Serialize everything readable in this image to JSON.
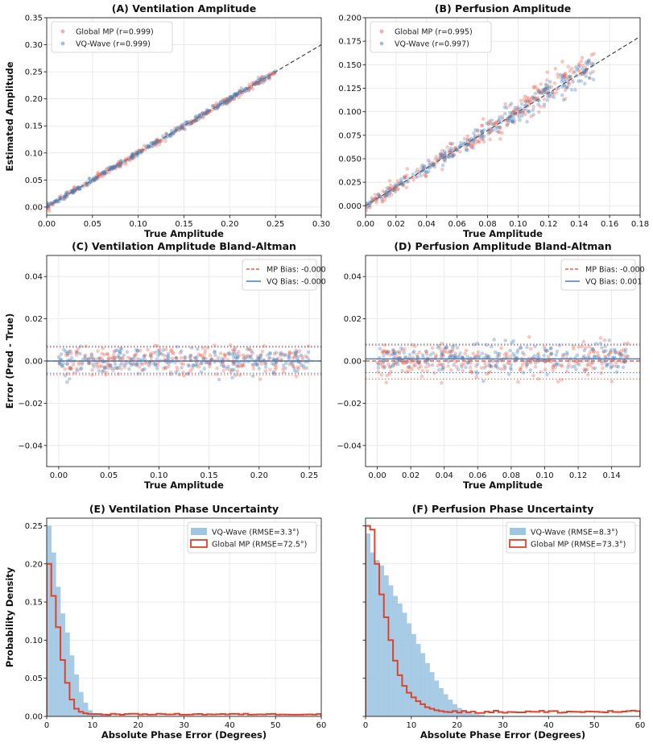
{
  "colors": {
    "mp": "#e8604c",
    "vq": "#4a7fb5",
    "vq_hist": "#9ec6e2",
    "mp_hist": "#e0412b",
    "grid": "#e6e6e6",
    "identity": "#444444"
  },
  "chart_data": [
    {
      "id": "A",
      "type": "scatter",
      "title": "(A) Ventilation Amplitude",
      "xlabel": "True Amplitude",
      "ylabel": "Estimated Amplitude",
      "xlim": [
        0,
        0.3
      ],
      "ylim": [
        -0.015,
        0.35
      ],
      "xticks": [
        0.0,
        0.05,
        0.1,
        0.15,
        0.2,
        0.25,
        0.3
      ],
      "yticks": [
        0.0,
        0.05,
        0.1,
        0.15,
        0.2,
        0.25,
        0.3,
        0.35
      ],
      "tick_decimals": 2,
      "identity_line": true,
      "grid": true,
      "legend_position": "top-left",
      "x_range": [
        0,
        0.25
      ],
      "series": [
        {
          "name": "Global MP (r=0.999)",
          "color_key": "mp",
          "noise_sd": 0.003
        },
        {
          "name": "VQ-Wave (r=0.999)",
          "color_key": "vq",
          "noise_sd": 0.0025
        }
      ]
    },
    {
      "id": "B",
      "type": "scatter",
      "title": "(B) Perfusion Amplitude",
      "xlabel": "True Amplitude",
      "ylabel": "",
      "xlim": [
        0,
        0.18
      ],
      "ylim": [
        -0.01,
        0.2
      ],
      "xticks": [
        0.0,
        0.02,
        0.04,
        0.06,
        0.08,
        0.1,
        0.12,
        0.14,
        0.16,
        0.18
      ],
      "yticks": [
        0.0,
        0.025,
        0.05,
        0.075,
        0.1,
        0.125,
        0.15,
        0.175,
        0.2
      ],
      "tick_decimals": 3,
      "xtick_decimals": 2,
      "identity_line": true,
      "grid": true,
      "legend_position": "top-left",
      "x_range": [
        0,
        0.15
      ],
      "series": [
        {
          "name": "Global MP (r=0.995)",
          "color_key": "mp",
          "noise_sd": 0.005
        },
        {
          "name": "VQ-Wave (r=0.997)",
          "color_key": "vq",
          "noise_sd": 0.004
        }
      ]
    },
    {
      "id": "C",
      "type": "scatter",
      "title": "(C) Ventilation Amplitude Bland-Altman",
      "xlabel": "True Amplitude",
      "ylabel": "Error (Pred - True)",
      "xlim": [
        -0.012,
        0.262
      ],
      "ylim": [
        -0.05,
        0.05
      ],
      "xticks": [
        0.0,
        0.05,
        0.1,
        0.15,
        0.2,
        0.25
      ],
      "yticks": [
        -0.04,
        -0.02,
        0.0,
        0.02,
        0.04
      ],
      "tick_decimals": 2,
      "grid": true,
      "legend_position": "top-right",
      "x_range": [
        0,
        0.25
      ],
      "bias": {
        "mp": -0.0,
        "vq": -0.0
      },
      "loa": {
        "mp": [
          -0.0065,
          0.0065
        ],
        "vq": [
          -0.0058,
          0.007
        ]
      },
      "series": [
        {
          "name": "MP Bias: -0.000",
          "color_key": "mp",
          "noise_sd": 0.0033
        },
        {
          "name": "VQ Bias: -0.000",
          "color_key": "vq",
          "noise_sd": 0.003
        }
      ]
    },
    {
      "id": "D",
      "type": "scatter",
      "title": "(D) Perfusion Amplitude Bland-Altman",
      "xlabel": "True Amplitude",
      "ylabel": "",
      "xlim": [
        -0.007,
        0.157
      ],
      "ylim": [
        -0.05,
        0.05
      ],
      "xticks": [
        0.0,
        0.02,
        0.04,
        0.06,
        0.08,
        0.1,
        0.12,
        0.14
      ],
      "yticks": [
        -0.04,
        -0.02,
        0.0,
        0.02,
        0.04
      ],
      "tick_decimals": 2,
      "grid": true,
      "legend_position": "top-right",
      "x_range": [
        0,
        0.15
      ],
      "bias": {
        "mp": -0.0,
        "vq": 0.001
      },
      "loa": {
        "mp": [
          -0.0085,
          0.0075
        ],
        "vq": [
          -0.0055,
          0.008
        ]
      },
      "series": [
        {
          "name": "MP Bias: -0.000",
          "color_key": "mp",
          "noise_sd": 0.0042
        },
        {
          "name": "VQ Bias: 0.001",
          "color_key": "vq",
          "noise_sd": 0.0035
        }
      ]
    },
    {
      "id": "E",
      "type": "histogram",
      "title": "(E) Ventilation Phase Uncertainty",
      "xlabel": "Absolute Phase Error (Degrees)",
      "ylabel": "Probability Density",
      "xlim": [
        0,
        60
      ],
      "ylim": [
        0,
        0.26
      ],
      "xticks": [
        0,
        10,
        20,
        30,
        40,
        50,
        60
      ],
      "yticks": [
        0.0,
        0.05,
        0.1,
        0.15,
        0.2,
        0.25
      ],
      "tick_decimals": 2,
      "show_ytick_labels": true,
      "grid": true,
      "legend_position": "top-right",
      "bin_width": 1.0,
      "series": [
        {
          "name": "VQ-Wave (RMSE=3.3°)",
          "style": "filled",
          "color_key": "vq_hist",
          "values": [
            0.25,
            0.215,
            0.17,
            0.135,
            0.11,
            0.08,
            0.055,
            0.032,
            0.018,
            0.008,
            0.004,
            0.002,
            0.001,
            0.001
          ]
        },
        {
          "name": "Global MP (RMSE=72.5°)",
          "style": "step",
          "color_key": "mp_hist",
          "values": [
            0.2,
            0.158,
            0.117,
            0.074,
            0.044,
            0.022,
            0.01,
            0.006,
            0.004,
            0.003,
            0.003
          ],
          "tail_value": 0.0028
        }
      ]
    },
    {
      "id": "F",
      "type": "histogram",
      "title": "(F) Perfusion Phase Uncertainty",
      "xlabel": "Absolute Phase Error (Degrees)",
      "ylabel": "",
      "xlim": [
        0,
        60
      ],
      "ylim": [
        0,
        0.26
      ],
      "xticks": [
        0,
        10,
        20,
        30,
        40,
        50,
        60
      ],
      "yticks": [
        0.0,
        0.05,
        0.1,
        0.15,
        0.2,
        0.25
      ],
      "tick_decimals": 2,
      "show_ytick_labels": false,
      "grid": true,
      "legend_position": "top-right",
      "bin_width": 1.0,
      "series": [
        {
          "name": "VQ-Wave (RMSE=8.3°)",
          "style": "filled",
          "color_key": "vq_hist",
          "values": [
            0.24,
            0.215,
            0.205,
            0.198,
            0.185,
            0.172,
            0.158,
            0.148,
            0.136,
            0.122,
            0.108,
            0.095,
            0.083,
            0.07,
            0.058,
            0.047,
            0.037,
            0.029,
            0.022,
            0.016,
            0.011,
            0.008,
            0.005,
            0.004,
            0.003,
            0.002
          ]
        },
        {
          "name": "Global MP (RMSE=73.3°)",
          "style": "step",
          "color_key": "mp_hist",
          "values": [
            0.25,
            0.245,
            0.2,
            0.16,
            0.13,
            0.1,
            0.073,
            0.054,
            0.04,
            0.031,
            0.025,
            0.02,
            0.016,
            0.012,
            0.01,
            0.008,
            0.007,
            0.006
          ],
          "tail_value": 0.006
        }
      ]
    }
  ]
}
